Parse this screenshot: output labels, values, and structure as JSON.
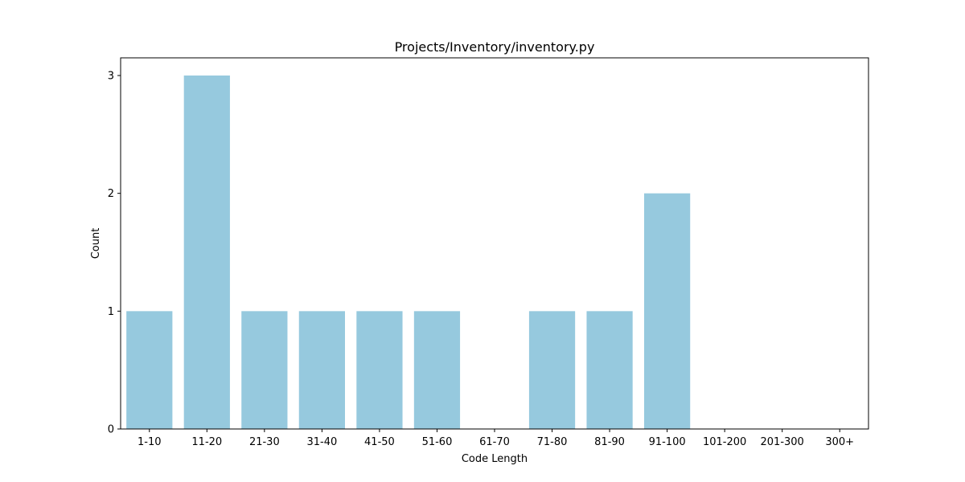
{
  "chart_data": {
    "type": "bar",
    "title": "Projects/Inventory/inventory.py",
    "xlabel": "Code Length",
    "ylabel": "Count",
    "categories": [
      "1-10",
      "11-20",
      "21-30",
      "31-40",
      "41-50",
      "51-60",
      "61-70",
      "71-80",
      "81-90",
      "91-100",
      "101-200",
      "201-300",
      "300+"
    ],
    "values": [
      1,
      3,
      1,
      1,
      1,
      1,
      0,
      1,
      1,
      2,
      0,
      0,
      0
    ],
    "ylim": [
      0,
      3.15
    ],
    "yticks": [
      0,
      1,
      2,
      3
    ],
    "bar_color": "#96c9de",
    "grid": false,
    "legend": "none"
  }
}
